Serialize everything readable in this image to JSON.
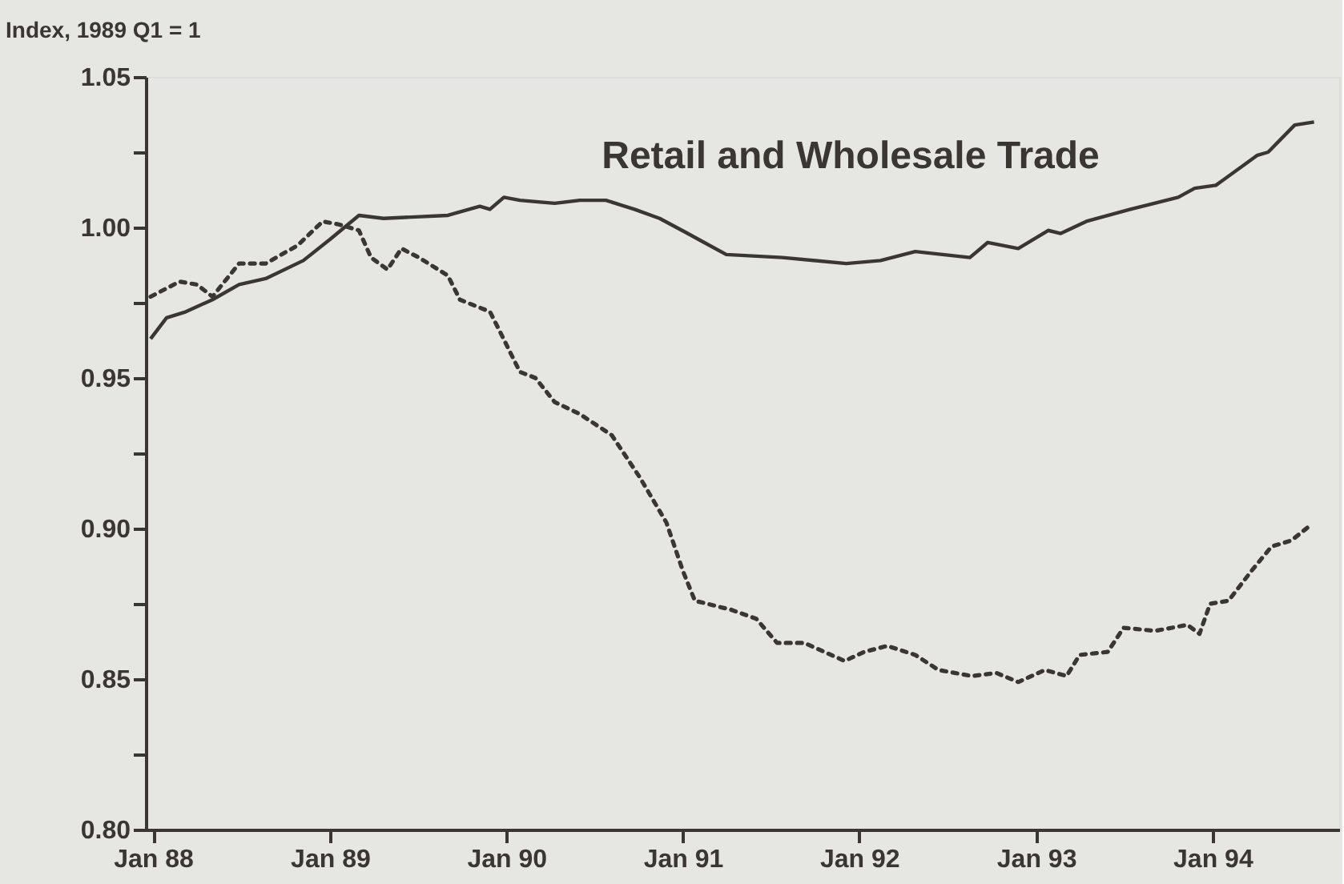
{
  "chart_data": {
    "type": "line",
    "title": "Retail and Wholesale Trade",
    "ylabel": "Index, 1989 Q1 = 1",
    "xlim": [
      "1987-12-17",
      "1994-09-20"
    ],
    "xticks": [
      {
        "value": "1988-01-01",
        "label": "Jan 88"
      },
      {
        "value": "1989-01-01",
        "label": "Jan 89"
      },
      {
        "value": "1990-01-01",
        "label": "Jan 90"
      },
      {
        "value": "1991-01-01",
        "label": "Jan 91"
      },
      {
        "value": "1992-01-01",
        "label": "Jan 92"
      },
      {
        "value": "1993-01-01",
        "label": "Jan 93"
      },
      {
        "value": "1994-01-01",
        "label": "Jan 94"
      }
    ],
    "ylim": [
      0.8,
      1.05
    ],
    "yticks": [
      {
        "value": 0.8,
        "label": "0.80"
      },
      {
        "value": 0.825,
        "label": null
      },
      {
        "value": 0.85,
        "label": "0.85"
      },
      {
        "value": 0.875,
        "label": null
      },
      {
        "value": 0.9,
        "label": "0.90"
      },
      {
        "value": 0.925,
        "label": null
      },
      {
        "value": 0.95,
        "label": "0.95"
      },
      {
        "value": 0.975,
        "label": null
      },
      {
        "value": 1.0,
        "label": "1.00"
      },
      {
        "value": 1.025,
        "label": null
      },
      {
        "value": 1.05,
        "label": "1.05"
      }
    ],
    "grid": false,
    "series": [
      {
        "color": "#3a3632",
        "line_style": "solid",
        "x": [
          "1987-12-27",
          "1988-01-29",
          "1988-03-09",
          "1988-05-03",
          "1988-06-27",
          "1988-08-21",
          "1988-11-07",
          "1989-01-01",
          "1989-03-02",
          "1989-04-22",
          "1989-09-02",
          "1989-11-07",
          "1989-11-28",
          "1989-12-27",
          "1990-01-29",
          "1990-04-11",
          "1990-06-02",
          "1990-07-26",
          "1990-09-23",
          "1990-11-14",
          "1991-01-11",
          "1991-02-14",
          "1991-04-01",
          "1991-07-26",
          "1991-12-05",
          "1992-02-14",
          "1992-04-26",
          "1992-08-17",
          "1992-09-23",
          "1992-11-25",
          "1993-01-26",
          "1993-02-21",
          "1993-04-15",
          "1993-07-15",
          "1993-10-22",
          "1993-11-25",
          "1994-01-08",
          "1994-04-04",
          "1994-04-26",
          "1994-06-20",
          "1994-07-30"
        ],
        "values": [
          0.963,
          0.97,
          0.972,
          0.976,
          0.981,
          0.983,
          0.989,
          0.996,
          1.004,
          1.003,
          1.004,
          1.007,
          1.006,
          1.01,
          1.009,
          1.008,
          1.009,
          1.009,
          1.006,
          1.003,
          0.998,
          0.995,
          0.991,
          0.99,
          0.988,
          0.989,
          0.992,
          0.99,
          0.995,
          0.993,
          0.999,
          0.998,
          1.002,
          1.006,
          1.01,
          1.013,
          1.014,
          1.024,
          1.025,
          1.034,
          1.035
        ]
      },
      {
        "color": "#3a3632",
        "line_style": "dotted",
        "x": [
          "1987-12-27",
          "1988-02-25",
          "1988-04-01",
          "1988-05-03",
          "1988-06-27",
          "1988-08-21",
          "1988-10-26",
          "1988-12-17",
          "1989-01-19",
          "1989-03-02",
          "1989-03-27",
          "1989-04-30",
          "1989-05-29",
          "1989-07-04",
          "1989-09-02",
          "1989-09-27",
          "1989-11-28",
          "1989-12-20",
          "1990-01-29",
          "1990-03-02",
          "1990-04-11",
          "1990-06-02",
          "1990-08-07",
          "1990-10-04",
          "1990-11-28",
          "1991-01-01",
          "1991-01-26",
          "1991-04-11",
          "1991-06-02",
          "1991-07-15",
          "1991-09-09",
          "1991-12-02",
          "1992-01-11",
          "1992-02-28",
          "1992-04-26",
          "1992-06-13",
          "1992-08-21",
          "1992-10-11",
          "1992-11-25",
          "1993-01-19",
          "1993-03-05",
          "1993-04-01",
          "1993-05-29",
          "1993-07-01",
          "1993-09-05",
          "1993-11-10",
          "1993-12-05",
          "1993-12-27",
          "1994-02-03",
          "1994-03-23",
          "1994-05-03",
          "1994-06-13",
          "1994-07-22"
        ],
        "values": [
          0.977,
          0.982,
          0.981,
          0.977,
          0.988,
          0.988,
          0.994,
          1.002,
          1.001,
          0.999,
          0.99,
          0.986,
          0.993,
          0.99,
          0.984,
          0.976,
          0.972,
          0.965,
          0.952,
          0.95,
          0.942,
          0.938,
          0.931,
          0.917,
          0.902,
          0.886,
          0.876,
          0.873,
          0.87,
          0.862,
          0.862,
          0.856,
          0.859,
          0.861,
          0.858,
          0.853,
          0.851,
          0.852,
          0.849,
          0.853,
          0.851,
          0.858,
          0.859,
          0.867,
          0.866,
          0.868,
          0.865,
          0.875,
          0.876,
          0.886,
          0.894,
          0.896,
          0.901
        ]
      }
    ]
  }
}
